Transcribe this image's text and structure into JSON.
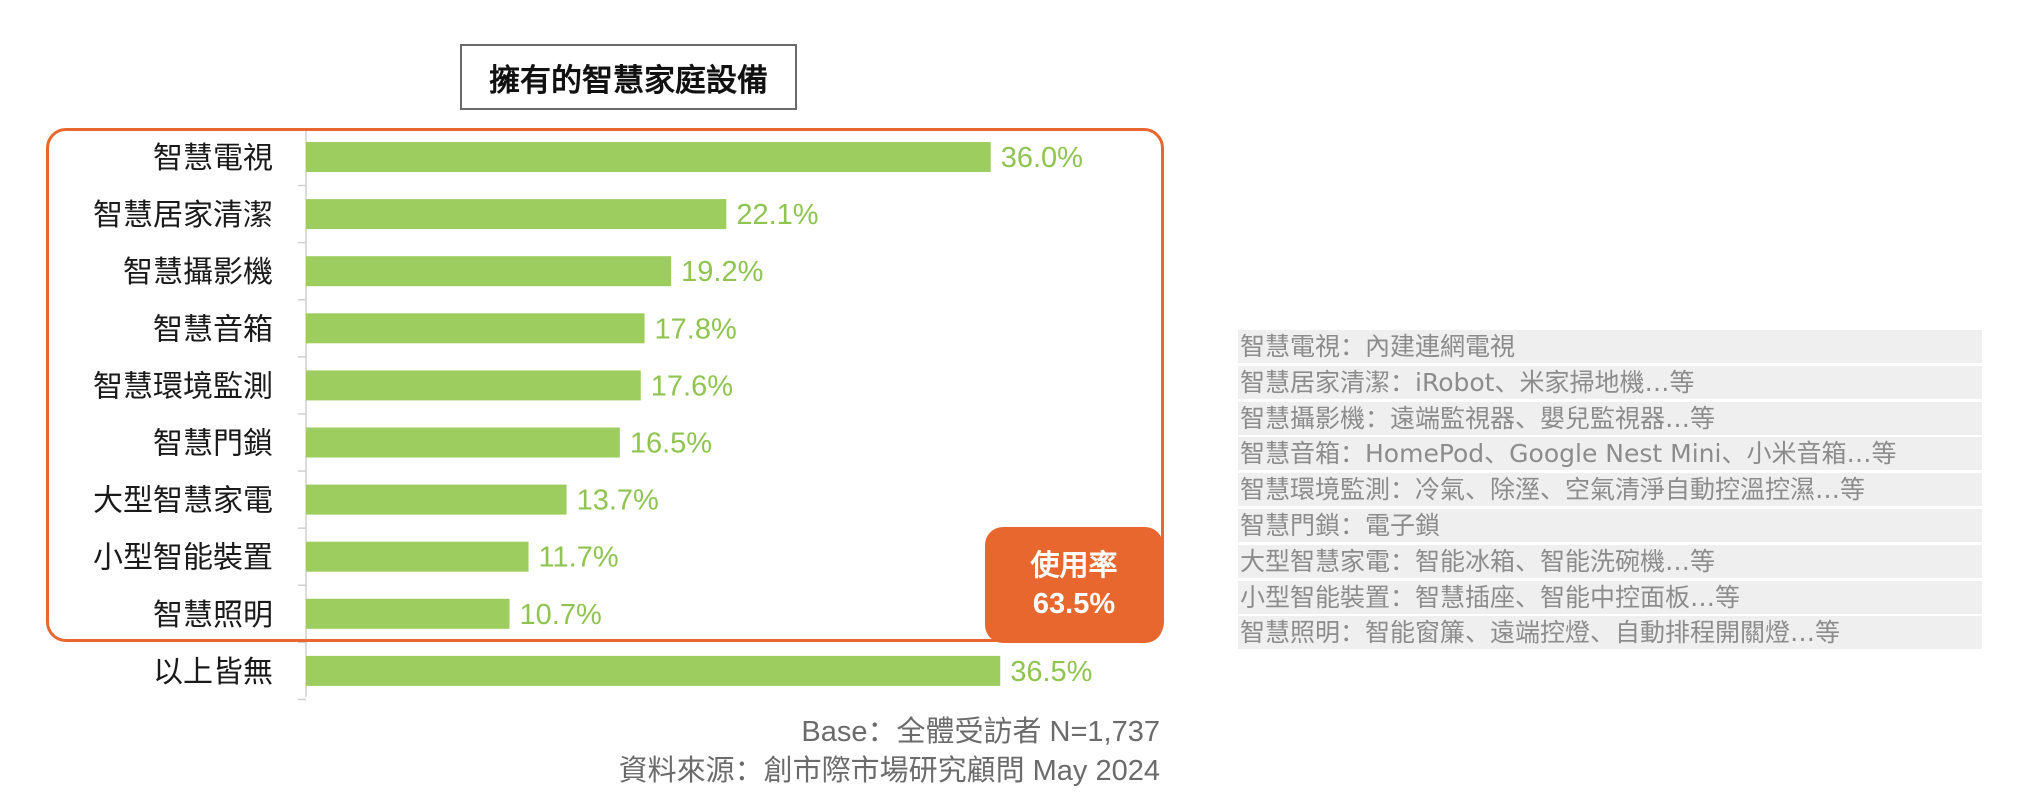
{
  "chart_data": {
    "type": "bar",
    "orientation": "horizontal",
    "title": "擁有的智慧家庭設備",
    "categories": [
      "智慧電視",
      "智慧居家清潔",
      "智慧攝影機",
      "智慧音箱",
      "智慧環境監測",
      "智慧門鎖",
      "大型智慧家電",
      "小型智能裝置",
      "智慧照明",
      "以上皆無"
    ],
    "values": [
      36.0,
      22.1,
      19.2,
      17.8,
      17.6,
      16.5,
      13.7,
      11.7,
      10.7,
      36.5
    ],
    "value_labels": [
      "36.0%",
      "22.1%",
      "19.2%",
      "17.8%",
      "17.6%",
      "16.5%",
      "13.7%",
      "11.7%",
      "10.7%",
      "36.5%"
    ],
    "xlim": [
      0,
      40
    ],
    "grid": false,
    "colors": {
      "bar": "#9dcd5e",
      "value_label": "#8fc451",
      "highlight": "#e8672f"
    }
  },
  "badge": {
    "line1": "使用率",
    "line2": "63.5%"
  },
  "footnotes": {
    "base": "Base：全體受訪者 N=1,737",
    "source": "資料來源：創市際市場研究顧問 May 2024"
  },
  "definitions": [
    "智慧電視：內建連網電視",
    "智慧居家清潔：iRobot、米家掃地機…等",
    "智慧攝影機：遠端監視器、嬰兒監視器…等",
    "智慧音箱：HomePod、Google Nest Mini、小米音箱…等",
    "智慧環境監測：冷氣、除溼、空氣清淨自動控溫控濕…等",
    "智慧門鎖：電子鎖",
    "大型智慧家電：智能冰箱、智能洗碗機…等",
    "小型智能裝置：智慧插座、智能中控面板…等",
    "智慧照明：智能窗簾、遠端控燈、自動排程開關燈…等"
  ]
}
